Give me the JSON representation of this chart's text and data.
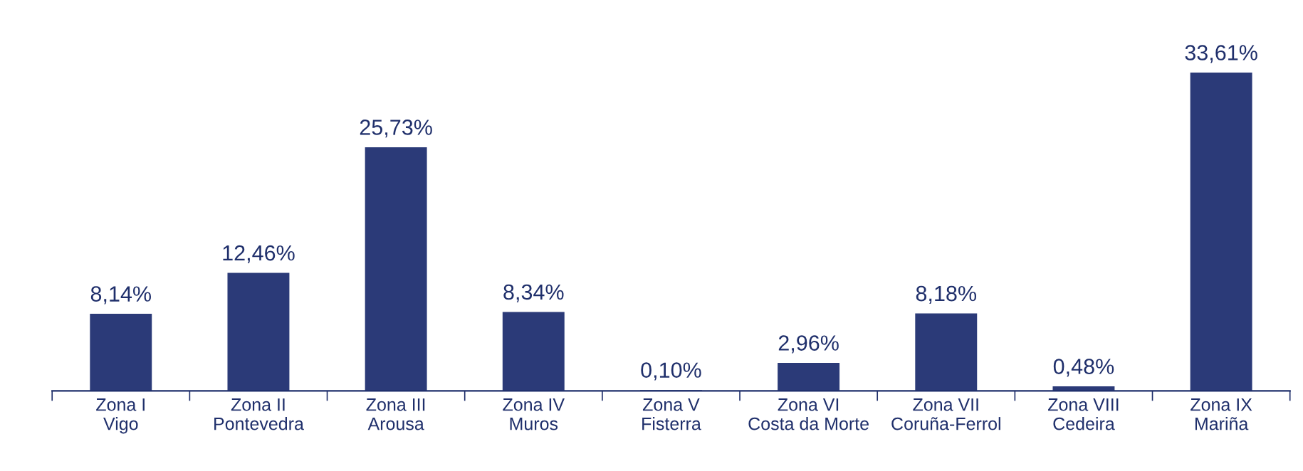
{
  "chart_data": {
    "type": "bar",
    "categories": [
      "Zona I\nVigo",
      "Zona II\nPontevedra",
      "Zona III\nArousa",
      "Zona IV\nMuros",
      "Zona V\nFisterra",
      "Zona VI\nCosta da Morte",
      "Zona VII\nCoruña-Ferrol",
      "Zona VIII\nCedeira",
      "Zona IX\nMariña"
    ],
    "values": [
      8.14,
      12.46,
      25.73,
      8.34,
      0.1,
      2.96,
      8.18,
      0.48,
      33.61
    ],
    "value_labels": [
      "8,14%",
      "12,46%",
      "25,73%",
      "8,34%",
      "0,10%",
      "2,96%",
      "8,18%",
      "0,48%",
      "33,61%"
    ],
    "color": "#2b3a78",
    "tick_labels": "x",
    "grid": false,
    "legend": false
  }
}
